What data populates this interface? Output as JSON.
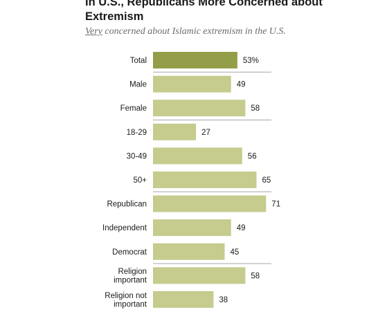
{
  "title": "In U.S., Republicans More Concerned about Extremism",
  "subtitle": {
    "underlined": "Very",
    "rest": " concerned about Islamic extremism in the U.S."
  },
  "colors": {
    "highlight": "#949e48",
    "bar": "#c6cb8e",
    "divider": "#a6a6a6"
  },
  "chart_data": {
    "type": "bar",
    "orientation": "horizontal",
    "categories": [
      [
        "Total"
      ],
      [
        "Male"
      ],
      [
        "Female"
      ],
      [
        "18-29"
      ],
      [
        "30-49"
      ],
      [
        "50+"
      ],
      [
        "Republican"
      ],
      [
        "Independent"
      ],
      [
        "Democrat"
      ],
      [
        "Religion",
        "important"
      ],
      [
        "Religion not",
        "important"
      ]
    ],
    "values": [
      53,
      49,
      58,
      27,
      56,
      65,
      71,
      49,
      45,
      58,
      38
    ],
    "value_labels": [
      "53%",
      "49",
      "58",
      "27",
      "56",
      "65",
      "71",
      "49",
      "45",
      "58",
      "38"
    ],
    "highlighted_index": 0,
    "divider_after": [
      0,
      2,
      5,
      8
    ],
    "xlim": [
      0,
      100
    ],
    "grid": false
  }
}
